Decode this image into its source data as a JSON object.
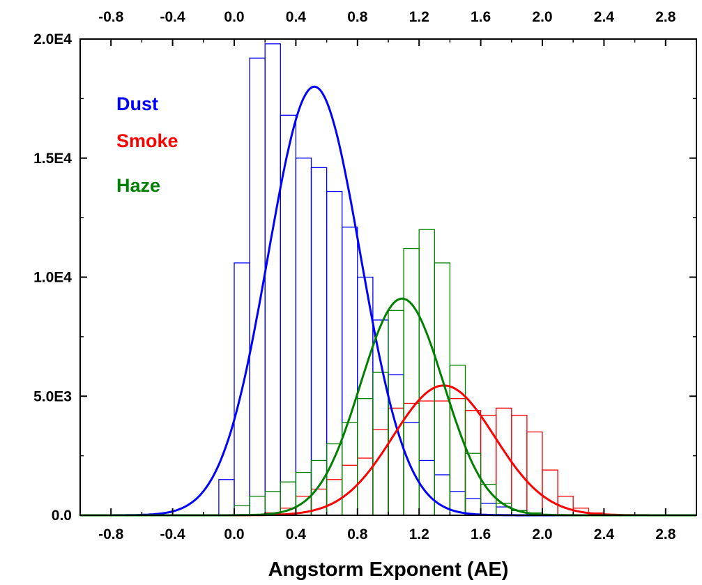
{
  "chart_data": {
    "type": "bar",
    "xlabel": "Angstorm Exponent (AE)",
    "xlim": [
      -1.0,
      3.0
    ],
    "ylim": [
      0,
      20000
    ],
    "x_ticks": [
      -0.8,
      -0.4,
      0.0,
      0.4,
      0.8,
      1.2,
      1.6,
      2.0,
      2.4,
      2.8
    ],
    "x_tick_labels": [
      "-0.8",
      "-0.4",
      "0.0",
      "0.4",
      "0.8",
      "1.2",
      "1.6",
      "2.0",
      "2.4",
      "2.8"
    ],
    "y_ticks": [
      0,
      5000,
      10000,
      15000,
      20000
    ],
    "y_tick_labels": [
      "0.0",
      "5.0E3",
      "1.0E4",
      "1.5E4",
      "2.0E4"
    ],
    "bin_width": 0.1,
    "legend_position": "top-left",
    "series": [
      {
        "name": "Dust",
        "color": "#0000ff",
        "bin_starts": [
          -0.1,
          0.0,
          0.1,
          0.2,
          0.3,
          0.4,
          0.5,
          0.6,
          0.7,
          0.8,
          0.9,
          1.0,
          1.1,
          1.2,
          1.3,
          1.4,
          1.5,
          1.6,
          1.7,
          1.8
        ],
        "counts": [
          1500,
          10600,
          19200,
          19800,
          16800,
          15000,
          14600,
          13600,
          12100,
          10000,
          8200,
          5900,
          3900,
          2300,
          1700,
          1000,
          700,
          500,
          350,
          200
        ],
        "fit": {
          "mean": 0.52,
          "sigma": 0.3,
          "peak": 18000
        }
      },
      {
        "name": "Smoke",
        "color": "#ff0000",
        "bin_starts": [
          0.2,
          0.3,
          0.4,
          0.5,
          0.6,
          0.7,
          0.8,
          0.9,
          1.0,
          1.1,
          1.2,
          1.3,
          1.4,
          1.5,
          1.6,
          1.7,
          1.8,
          1.9,
          2.0,
          2.1,
          2.2,
          2.3
        ],
        "counts": [
          100,
          300,
          800,
          1100,
          1500,
          2100,
          2400,
          3600,
          4500,
          4700,
          4800,
          4800,
          4900,
          4400,
          4200,
          4500,
          4200,
          3500,
          1900,
          800,
          300,
          100
        ],
        "fit": {
          "mean": 1.36,
          "sigma": 0.33,
          "peak": 5450
        }
      },
      {
        "name": "Haze",
        "color": "#008000",
        "bin_starts": [
          0.0,
          0.1,
          0.2,
          0.3,
          0.4,
          0.5,
          0.6,
          0.7,
          0.8,
          0.9,
          1.0,
          1.1,
          1.2,
          1.3,
          1.4,
          1.5,
          1.6,
          1.7,
          1.8,
          1.9
        ],
        "counts": [
          400,
          800,
          1000,
          1400,
          1800,
          2300,
          3000,
          3900,
          4900,
          6000,
          8600,
          11200,
          12000,
          10600,
          6300,
          2600,
          1300,
          500,
          200,
          100
        ],
        "fit": {
          "mean": 1.09,
          "sigma": 0.27,
          "peak": 9100
        }
      }
    ]
  }
}
